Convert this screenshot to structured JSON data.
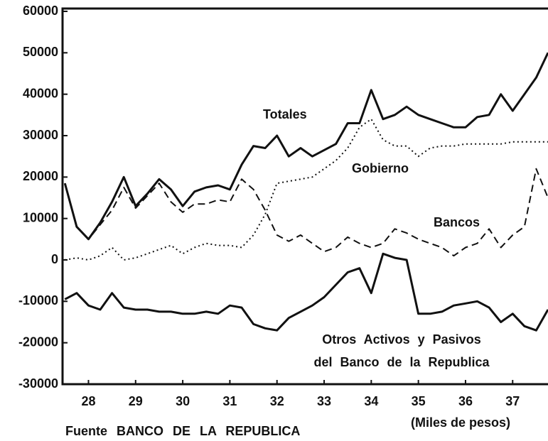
{
  "chart_data": {
    "type": "line",
    "annotations": [
      "(Miles de pesos)",
      "Fuente BANCO DE LA REPUBLICA"
    ],
    "x": [
      27.5,
      27.75,
      28,
      28.25,
      28.5,
      28.75,
      29,
      29.25,
      29.5,
      29.75,
      30,
      30.25,
      30.5,
      30.75,
      31,
      31.25,
      31.5,
      31.75,
      32,
      32.25,
      32.5,
      32.75,
      33,
      33.25,
      33.5,
      33.75,
      34,
      34.25,
      34.5,
      34.75,
      35,
      35.25,
      35.5,
      35.75,
      36,
      36.25,
      36.5,
      36.75,
      37,
      37.25,
      37.5,
      37.75
    ],
    "series": [
      {
        "name": "Totales",
        "color": "#111111",
        "dash": "solid",
        "values": [
          18500,
          8000,
          5000,
          9000,
          14000,
          20000,
          13000,
          16000,
          19500,
          17000,
          13000,
          16500,
          17500,
          18000,
          17000,
          23000,
          27500,
          27000,
          30000,
          25000,
          27000,
          25000,
          26500,
          28000,
          33000,
          33000,
          41000,
          34000,
          35000,
          37000,
          35000,
          34000,
          33000,
          32000,
          32000,
          34500,
          35000,
          40000,
          36000,
          40000,
          44000,
          50000
        ]
      },
      {
        "name": "Gobierno",
        "color": "#111111",
        "dash": "dotted",
        "values": [
          0,
          500,
          0,
          1000,
          3000,
          0,
          500,
          1500,
          2500,
          3500,
          1500,
          3000,
          4000,
          3500,
          3500,
          3000,
          6000,
          11000,
          18500,
          19000,
          19500,
          20000,
          22000,
          24000,
          27000,
          32000,
          34000,
          29000,
          27500,
          27500,
          25000,
          27000,
          27500,
          27500,
          28000,
          28000,
          28000,
          28000,
          28500,
          28500,
          28500,
          28500
        ]
      },
      {
        "name": "Bancos",
        "color": "#111111",
        "dash": "dashed",
        "values": [
          18500,
          8000,
          5000,
          8500,
          12000,
          17500,
          12500,
          15500,
          18500,
          14000,
          11500,
          13500,
          13500,
          14500,
          14000,
          19500,
          17000,
          12000,
          6000,
          4500,
          6000,
          4000,
          2000,
          3000,
          5500,
          4000,
          3000,
          4000,
          7500,
          6500,
          5000,
          4000,
          3000,
          1000,
          3000,
          4000,
          7500,
          3000,
          6000,
          8000,
          22000,
          15000
        ]
      },
      {
        "name": "Otros Activos y Pasivos del Banco de la Republica",
        "color": "#111111",
        "dash": "solid",
        "values": [
          -9500,
          -8000,
          -11000,
          -12000,
          -8000,
          -11500,
          -12000,
          -12000,
          -12500,
          -12500,
          -13000,
          -13000,
          -12500,
          -13000,
          -11000,
          -11500,
          -15500,
          -16500,
          -17000,
          -14000,
          -12500,
          -11000,
          -9000,
          -6000,
          -3000,
          -2000,
          -8000,
          1500,
          500,
          0,
          -13000,
          -13000,
          -12500,
          -11000,
          -10500,
          -10000,
          -11500,
          -15000,
          -13000,
          -16000,
          -17000,
          -12000
        ]
      }
    ],
    "xlim": [
      27.45,
      37.75
    ],
    "xticks": [
      28,
      29,
      30,
      31,
      32,
      33,
      34,
      35,
      36,
      37
    ],
    "ylim": [
      -30000,
      60000
    ],
    "yticks": [
      -30000,
      -20000,
      -10000,
      0,
      10000,
      20000,
      30000,
      40000,
      50000,
      60000
    ],
    "grid": false
  }
}
